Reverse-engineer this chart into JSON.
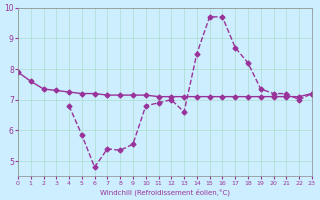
{
  "xlabel": "Windchill (Refroidissement éolien,°C)",
  "ylabel": "",
  "bg_color": "#cceeff",
  "grid_color": "#aaddcc",
  "line_color": "#993399",
  "xlim": [
    0,
    23
  ],
  "ylim": [
    4.5,
    10
  ],
  "yticks": [
    5,
    6,
    7,
    8,
    9,
    10
  ],
  "xticks": [
    0,
    1,
    2,
    3,
    4,
    5,
    6,
    7,
    8,
    9,
    10,
    11,
    12,
    13,
    14,
    15,
    16,
    17,
    18,
    19,
    20,
    21,
    22,
    23
  ],
  "line1_x": [
    0,
    1,
    2,
    3,
    4,
    5,
    6,
    7,
    8,
    9,
    10,
    11,
    12,
    13,
    14,
    15,
    16,
    17,
    18,
    19,
    20,
    21,
    22,
    23
  ],
  "line1_y": [
    7.9,
    7.6,
    7.35,
    7.3,
    7.25,
    7.2,
    7.2,
    7.15,
    7.15,
    7.15,
    7.15,
    7.1,
    7.1,
    7.1,
    7.1,
    7.1,
    7.1,
    7.1,
    7.1,
    7.1,
    7.1,
    7.1,
    7.1,
    7.2
  ],
  "line2_x": [
    4,
    5,
    6,
    7,
    8,
    9,
    10,
    11,
    12,
    13,
    14,
    15,
    16,
    17,
    18,
    19,
    20,
    21,
    22,
    23
  ],
  "line2_y": [
    6.8,
    5.85,
    4.8,
    5.4,
    5.35,
    5.55,
    6.8,
    6.9,
    7.0,
    6.6,
    8.5,
    9.7,
    9.7,
    8.7,
    8.2,
    7.35,
    7.2,
    7.2,
    7.0,
    7.2
  ]
}
